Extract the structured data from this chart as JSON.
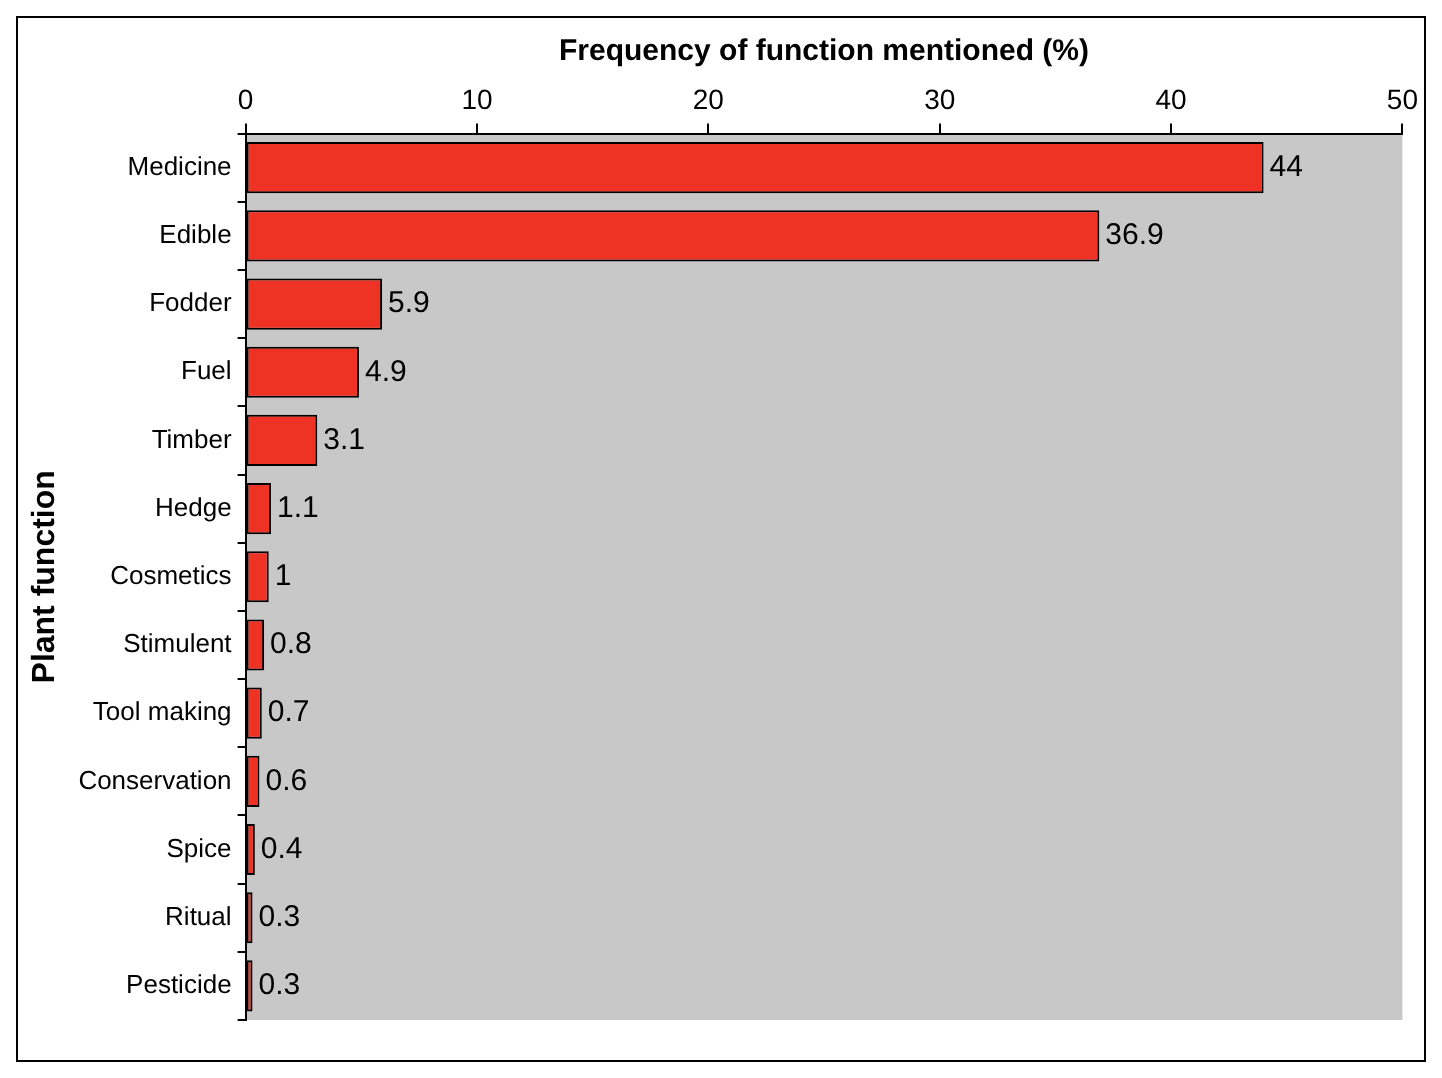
{
  "chart_data": {
    "type": "bar",
    "orientation": "horizontal",
    "xlabel": "Frequency of function mentioned (%)",
    "ylabel": "Plant function",
    "categories": [
      "Medicine",
      "Edible",
      "Fodder",
      "Fuel",
      "Timber",
      "Hedge",
      "Cosmetics",
      "Stimulent",
      "Tool making",
      "Conservation",
      "Spice",
      "Ritual",
      "Pesticide"
    ],
    "values": [
      44,
      36.9,
      5.9,
      4.9,
      3.1,
      1.1,
      1,
      0.8,
      0.7,
      0.6,
      0.4,
      0.3,
      0.3
    ],
    "color": "#ee3224",
    "xlim": [
      0,
      50
    ],
    "xticks": [
      0,
      10,
      20,
      30,
      40,
      50
    ],
    "grid": false,
    "data_labels": true,
    "legend": false
  }
}
